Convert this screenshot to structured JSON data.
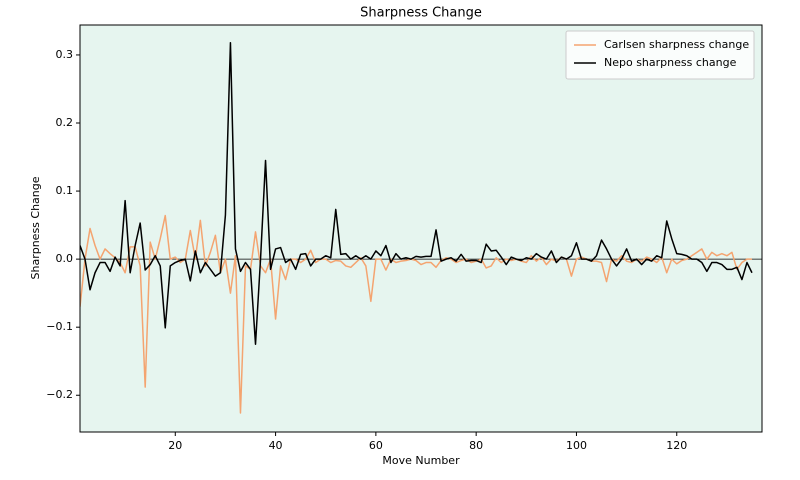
{
  "chart_data": {
    "type": "line",
    "title": "Sharpness Change",
    "xlabel": "Move Number",
    "ylabel": "Sharpness Change",
    "x": [
      1,
      2,
      3,
      4,
      5,
      6,
      7,
      8,
      9,
      10,
      11,
      12,
      13,
      14,
      15,
      16,
      17,
      18,
      19,
      20,
      21,
      22,
      23,
      24,
      25,
      26,
      27,
      28,
      29,
      30,
      31,
      32,
      33,
      34,
      35,
      36,
      37,
      38,
      39,
      40,
      41,
      42,
      43,
      44,
      45,
      46,
      47,
      48,
      49,
      50,
      51,
      52,
      53,
      54,
      55,
      56,
      57,
      58,
      59,
      60,
      61,
      62,
      63,
      64,
      65,
      66,
      67,
      68,
      69,
      70,
      71,
      72,
      73,
      74,
      75,
      76,
      77,
      78,
      79,
      80,
      81,
      82,
      83,
      84,
      85,
      86,
      87,
      88,
      89,
      90,
      91,
      92,
      93,
      94,
      95,
      96,
      97,
      98,
      99,
      100,
      101,
      102,
      103,
      104,
      105,
      106,
      107,
      108,
      109,
      110,
      111,
      112,
      113,
      114,
      115,
      116,
      117,
      118,
      119,
      120,
      121,
      122,
      123,
      124,
      125,
      126,
      127,
      128,
      129,
      130,
      131,
      132,
      133,
      134,
      135
    ],
    "series": [
      {
        "name": "Carlsen sharpness change",
        "color": "#f4a470",
        "values": [
          -0.07,
          0.0,
          0.045,
          0.02,
          0.0,
          0.015,
          0.008,
          0.002,
          -0.005,
          -0.02,
          0.018,
          0.018,
          -0.01,
          -0.188,
          0.025,
          0.0,
          0.03,
          0.064,
          0.0,
          0.003,
          -0.005,
          0.0,
          0.042,
          0.0,
          0.057,
          -0.01,
          0.01,
          0.035,
          -0.02,
          0.0,
          -0.05,
          0.005,
          -0.226,
          -0.01,
          -0.015,
          0.04,
          -0.01,
          -0.02,
          0.0,
          -0.088,
          -0.01,
          -0.03,
          0.0,
          0.0,
          -0.005,
          0.0,
          0.013,
          -0.005,
          0.0,
          0.0,
          -0.005,
          -0.002,
          -0.003,
          -0.01,
          -0.012,
          -0.005,
          0.002,
          -0.01,
          -0.062,
          0.0,
          0.0,
          -0.016,
          0.0,
          -0.005,
          -0.003,
          -0.002,
          0.0,
          -0.002,
          -0.008,
          -0.005,
          -0.005,
          -0.012,
          -0.002,
          0.002,
          0.0,
          -0.005,
          -0.002,
          0.0,
          -0.005,
          -0.003,
          0.0,
          -0.013,
          -0.01,
          0.002,
          -0.005,
          0.0,
          -0.002,
          0.0,
          -0.003,
          -0.005,
          0.005,
          -0.003,
          0.003,
          -0.008,
          0.0,
          -0.003,
          0.003,
          0.0,
          -0.025,
          0.0,
          0.003,
          0.0,
          -0.003,
          -0.003,
          -0.005,
          -0.033,
          0.0,
          -0.003,
          0.005,
          -0.003,
          -0.005,
          0.0,
          -0.003,
          0.003,
          0.0,
          -0.005,
          0.003,
          -0.02,
          0.0,
          -0.007,
          -0.002,
          0.0,
          0.005,
          0.01,
          0.015,
          0.0,
          0.01,
          0.005,
          0.008,
          0.005,
          0.01,
          -0.015,
          -0.005,
          0.0,
          0.0
        ]
      },
      {
        "name": "Nepo sharpness change",
        "color": "#000000",
        "values": [
          0.02,
          0.0,
          -0.045,
          -0.02,
          -0.005,
          -0.005,
          -0.018,
          0.003,
          -0.01,
          0.086,
          -0.02,
          0.02,
          0.053,
          -0.016,
          -0.008,
          0.005,
          -0.01,
          -0.101,
          -0.01,
          -0.005,
          -0.002,
          0.0,
          -0.032,
          0.012,
          -0.02,
          -0.005,
          -0.015,
          -0.025,
          -0.02,
          0.065,
          0.318,
          0.015,
          -0.018,
          -0.005,
          -0.015,
          -0.125,
          0.0,
          0.145,
          -0.015,
          0.015,
          0.017,
          -0.005,
          0.0,
          -0.015,
          0.007,
          0.008,
          -0.01,
          0.0,
          0.0,
          0.005,
          0.002,
          0.073,
          0.007,
          0.008,
          0.0,
          0.005,
          0.0,
          0.005,
          0.0,
          0.012,
          0.005,
          0.02,
          -0.005,
          0.008,
          0.0,
          0.002,
          0.0,
          0.004,
          0.003,
          0.004,
          0.004,
          0.043,
          -0.003,
          0.0,
          0.002,
          -0.003,
          0.007,
          -0.003,
          -0.002,
          -0.002,
          -0.005,
          0.022,
          0.012,
          0.013,
          0.003,
          -0.008,
          0.003,
          0.0,
          -0.002,
          0.002,
          0.0,
          0.008,
          0.003,
          0.0,
          0.012,
          -0.005,
          0.003,
          0.0,
          0.005,
          0.024,
          0.0,
          0.0,
          -0.003,
          0.005,
          0.028,
          0.015,
          0.0,
          -0.01,
          0.0,
          0.015,
          -0.003,
          0.0,
          -0.008,
          0.0,
          -0.003,
          0.005,
          0.002,
          0.056,
          0.03,
          0.008,
          0.007,
          0.005,
          0.0,
          0.0,
          -0.005,
          -0.018,
          -0.005,
          -0.005,
          -0.008,
          -0.015,
          -0.015,
          -0.012,
          -0.03,
          -0.005,
          -0.02
        ]
      }
    ],
    "xlim": [
      1,
      137
    ],
    "ylim": [
      -0.254,
      0.344
    ],
    "xticks": [
      20,
      40,
      60,
      80,
      100,
      120
    ],
    "yticks": [
      {
        "value": -0.2,
        "label": "−0.2"
      },
      {
        "value": -0.1,
        "label": "−0.1"
      },
      {
        "value": 0.0,
        "label": "0.0"
      },
      0.1,
      0.2,
      0.3
    ],
    "hline": 0,
    "background": "#e6f5ef",
    "legend": "upper right"
  }
}
